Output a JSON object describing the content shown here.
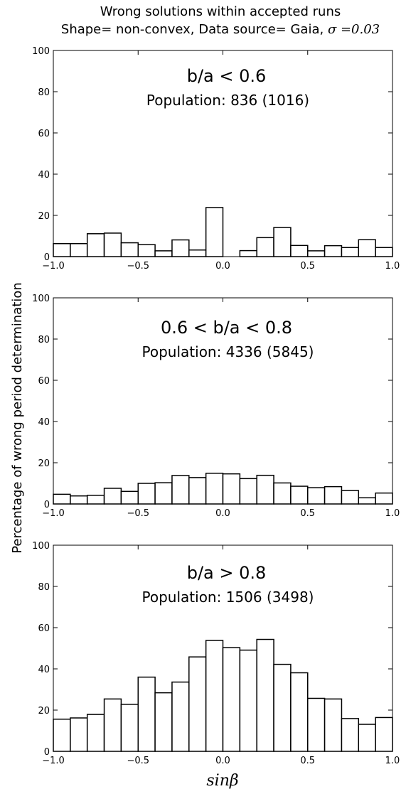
{
  "figure": {
    "title_line1": "Wrong solutions within accepted runs",
    "title_line2_prefix": "Shape= non-convex, Data source= Gaia, ",
    "title_line2_sigma": "σ =0.03",
    "ylabel": "Percentage of wrong period determination",
    "xlabel": "sinβ"
  },
  "chart_data": [
    {
      "type": "bar",
      "label": "b/a < 0.6",
      "population": "Population: 836 (1016)",
      "bin_edges": [
        -1.0,
        -0.9,
        -0.8,
        -0.7,
        -0.6,
        -0.5,
        -0.4,
        -0.3,
        -0.2,
        -0.1,
        0.0,
        0.1,
        0.2,
        0.3,
        0.4,
        0.5,
        0.6,
        0.7,
        0.8,
        0.9,
        1.0
      ],
      "values": [
        6.3,
        6.3,
        11.1,
        11.4,
        6.7,
        5.8,
        2.8,
        8.1,
        3.2,
        23.8,
        0.0,
        2.9,
        9.2,
        14.1,
        5.4,
        2.8,
        5.3,
        4.4,
        8.2,
        4.4
      ],
      "xlim": [
        -1.0,
        1.0
      ],
      "ylim": [
        0,
        100
      ],
      "xticks": [
        "−1.0",
        "−0.5",
        "0.0",
        "0.5",
        "1.0"
      ],
      "yticks": [
        "0",
        "20",
        "40",
        "60",
        "80",
        "100"
      ]
    },
    {
      "type": "bar",
      "label": "0.6 < b/a < 0.8",
      "population": "Population: 4336 (5845)",
      "bin_edges": [
        -1.0,
        -0.9,
        -0.8,
        -0.7,
        -0.6,
        -0.5,
        -0.4,
        -0.3,
        -0.2,
        -0.1,
        0.0,
        0.1,
        0.2,
        0.3,
        0.4,
        0.5,
        0.6,
        0.7,
        0.8,
        0.9,
        1.0
      ],
      "values": [
        4.7,
        3.9,
        4.2,
        7.6,
        6.1,
        10.0,
        10.3,
        13.8,
        12.8,
        14.9,
        14.6,
        12.3,
        13.9,
        10.2,
        8.6,
        7.9,
        8.4,
        6.5,
        3.0,
        5.3
      ],
      "xlim": [
        -1.0,
        1.0
      ],
      "ylim": [
        0,
        100
      ],
      "xticks": [
        "−1.0",
        "−0.5",
        "0.0",
        "0.5",
        "1.0"
      ],
      "yticks": [
        "0",
        "20",
        "40",
        "60",
        "80",
        "100"
      ]
    },
    {
      "type": "bar",
      "label": "b/a > 0.8",
      "population": "Population: 1506 (3498)",
      "bin_edges": [
        -1.0,
        -0.9,
        -0.8,
        -0.7,
        -0.6,
        -0.5,
        -0.4,
        -0.3,
        -0.2,
        -0.1,
        0.0,
        0.1,
        0.2,
        0.3,
        0.4,
        0.5,
        0.6,
        0.7,
        0.8,
        0.9,
        1.0
      ],
      "values": [
        15.6,
        16.2,
        17.9,
        25.4,
        22.8,
        36.0,
        28.4,
        33.6,
        45.8,
        53.8,
        50.3,
        49.1,
        54.3,
        42.2,
        38.1,
        25.7,
        25.4,
        15.9,
        13.1,
        16.4
      ],
      "xlim": [
        -1.0,
        1.0
      ],
      "ylim": [
        0,
        100
      ],
      "xticks": [
        "−1.0",
        "−0.5",
        "0.0",
        "0.5",
        "1.0"
      ],
      "yticks": [
        "0",
        "20",
        "40",
        "60",
        "80",
        "100"
      ]
    }
  ]
}
